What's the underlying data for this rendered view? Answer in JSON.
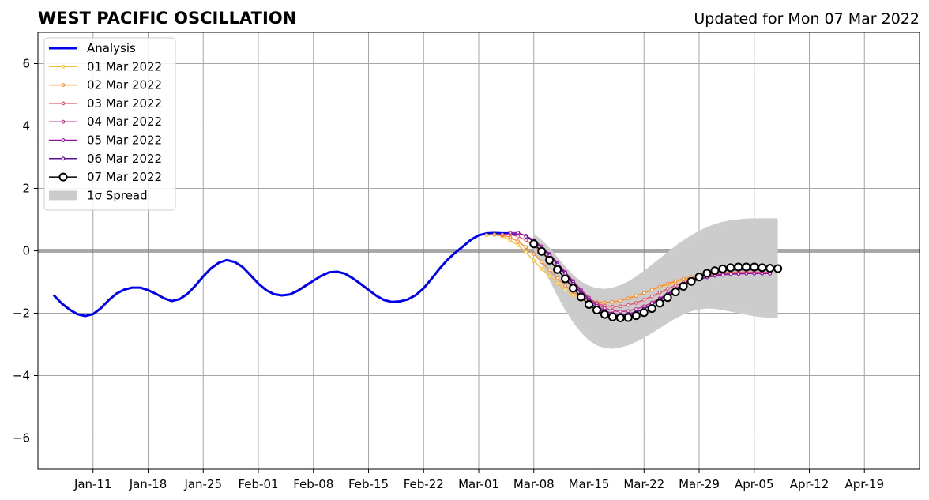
{
  "chart_data": {
    "type": "line",
    "title": "WEST PACIFIC OSCILLATION",
    "subtitle": "Updated for Mon 07 Mar 2022",
    "xlabel": "",
    "ylabel": "",
    "xlim": [
      "2022-01-04",
      "2022-04-26"
    ],
    "ylim": [
      -7,
      7
    ],
    "grid": true,
    "legend_position": "top-left",
    "x_ticks": [
      "2022-01-11",
      "2022-01-18",
      "2022-01-25",
      "2022-02-01",
      "2022-02-08",
      "2022-02-15",
      "2022-02-22",
      "2022-03-01",
      "2022-03-08",
      "2022-03-15",
      "2022-03-22",
      "2022-03-29",
      "2022-04-05",
      "2022-04-12",
      "2022-04-19"
    ],
    "x_tick_labels": [
      "Jan-11",
      "Jan-18",
      "Jan-25",
      "Feb-01",
      "Feb-08",
      "Feb-15",
      "Feb-22",
      "Mar-01",
      "Mar-08",
      "Mar-15",
      "Mar-22",
      "Mar-29",
      "Apr-05",
      "Apr-12",
      "Apr-19"
    ],
    "y_ticks": [
      -6,
      -4,
      -2,
      0,
      2,
      4,
      6
    ],
    "y_tick_labels": [
      "−6",
      "−4",
      "−2",
      "0",
      "2",
      "4",
      "6"
    ],
    "analysis": {
      "name": "Analysis",
      "color": "#0000ee",
      "start": "2022-01-06",
      "values": [
        -1.42,
        -1.68,
        -1.88,
        -2.03,
        -2.09,
        -2.03,
        -1.84,
        -1.58,
        -1.37,
        -1.24,
        -1.18,
        -1.18,
        -1.26,
        -1.38,
        -1.52,
        -1.61,
        -1.55,
        -1.38,
        -1.12,
        -0.82,
        -0.56,
        -0.38,
        -0.3,
        -0.36,
        -0.52,
        -0.78,
        -1.05,
        -1.26,
        -1.39,
        -1.43,
        -1.4,
        -1.28,
        -1.12,
        -0.96,
        -0.8,
        -0.69,
        -0.67,
        -0.73,
        -0.88,
        -1.06,
        -1.25,
        -1.44,
        -1.58,
        -1.64,
        -1.62,
        -1.56,
        -1.42,
        -1.2,
        -0.9,
        -0.58,
        -0.3,
        -0.06,
        0.14,
        0.35,
        0.5,
        0.56,
        0.57,
        0.56,
        0.56,
        0.56
      ]
    },
    "forecasts": [
      {
        "name": "01 Mar 2022",
        "color": "#fcbf3a",
        "start": "2022-03-02",
        "values": [
          0.5,
          0.52,
          0.46,
          0.34,
          0.18,
          -0.05,
          -0.32,
          -0.58,
          -0.82,
          -1.05,
          -1.25,
          -1.42,
          -1.54,
          -1.62,
          -1.66,
          -1.67,
          -1.64,
          -1.59,
          -1.52,
          -1.44,
          -1.35,
          -1.26,
          -1.16,
          -1.08,
          -1.0,
          -0.93,
          -0.86,
          -0.8,
          -0.76,
          -0.73,
          -0.71,
          -0.7,
          -0.7,
          -0.7,
          -0.7
        ]
      },
      {
        "name": "02 Mar 2022",
        "color": "#f48f3b",
        "start": "2022-03-03",
        "values": [
          0.51,
          0.5,
          0.43,
          0.3,
          0.12,
          -0.1,
          -0.36,
          -0.62,
          -0.88,
          -1.12,
          -1.32,
          -1.48,
          -1.58,
          -1.64,
          -1.66,
          -1.64,
          -1.6,
          -1.53,
          -1.45,
          -1.35,
          -1.25,
          -1.15,
          -1.05,
          -0.97,
          -0.9,
          -0.84,
          -0.79,
          -0.75,
          -0.72,
          -0.7,
          -0.69,
          -0.68,
          -0.68,
          -0.68,
          -0.68
        ]
      },
      {
        "name": "03 Mar 2022",
        "color": "#e05c72",
        "start": "2022-03-04",
        "values": [
          0.52,
          0.52,
          0.46,
          0.34,
          0.17,
          -0.06,
          -0.32,
          -0.6,
          -0.87,
          -1.13,
          -1.36,
          -1.55,
          -1.68,
          -1.76,
          -1.79,
          -1.78,
          -1.74,
          -1.67,
          -1.57,
          -1.46,
          -1.34,
          -1.22,
          -1.11,
          -1.01,
          -0.93,
          -0.86,
          -0.8,
          -0.76,
          -0.73,
          -0.71,
          -0.7,
          -0.69,
          -0.69,
          -0.69,
          -0.69
        ]
      },
      {
        "name": "04 Mar 2022",
        "color": "#c1378a",
        "start": "2022-03-05",
        "values": [
          0.58,
          0.56,
          0.48,
          0.34,
          0.14,
          -0.1,
          -0.38,
          -0.68,
          -0.97,
          -1.25,
          -1.5,
          -1.7,
          -1.84,
          -1.92,
          -1.95,
          -1.93,
          -1.87,
          -1.78,
          -1.66,
          -1.52,
          -1.38,
          -1.24,
          -1.11,
          -1.0,
          -0.91,
          -0.84,
          -0.79,
          -0.76,
          -0.74,
          -0.73,
          -0.73,
          -0.73,
          -0.73,
          -0.73
        ]
      },
      {
        "name": "05 Mar 2022",
        "color": "#8f15a0",
        "start": "2022-03-06",
        "values": [
          0.58,
          0.48,
          0.32,
          0.12,
          -0.12,
          -0.4,
          -0.7,
          -1.0,
          -1.29,
          -1.55,
          -1.76,
          -1.92,
          -2.01,
          -2.04,
          -2.02,
          -1.96,
          -1.86,
          -1.73,
          -1.58,
          -1.42,
          -1.27,
          -1.13,
          -1.01,
          -0.92,
          -0.85,
          -0.8,
          -0.77,
          -0.75,
          -0.74,
          -0.73,
          -0.73,
          -0.73,
          -0.73
        ]
      },
      {
        "name": "06 Mar 2022",
        "color": "#5a0f8f",
        "start": "2022-03-07",
        "values": [
          0.45,
          0.3,
          0.1,
          -0.15,
          -0.44,
          -0.75,
          -1.06,
          -1.36,
          -1.62,
          -1.83,
          -1.98,
          -2.06,
          -2.08,
          -2.05,
          -1.97,
          -1.86,
          -1.71,
          -1.55,
          -1.38,
          -1.22,
          -1.07,
          -0.94,
          -0.83,
          -0.74,
          -0.68,
          -0.64,
          -0.62,
          -0.61,
          -0.61,
          -0.61,
          -0.61,
          -0.61
        ]
      }
    ],
    "latest": {
      "name": "07 Mar 2022",
      "color": "#000000",
      "start": "2022-03-08",
      "values": [
        0.22,
        -0.02,
        -0.3,
        -0.6,
        -0.9,
        -1.2,
        -1.48,
        -1.72,
        -1.9,
        -2.04,
        -2.12,
        -2.15,
        -2.14,
        -2.08,
        -1.98,
        -1.85,
        -1.68,
        -1.5,
        -1.32,
        -1.14,
        -0.98,
        -0.84,
        -0.72,
        -0.64,
        -0.58,
        -0.54,
        -0.52,
        -0.52,
        -0.52,
        -0.54,
        -0.56,
        -0.57
      ]
    },
    "spread": {
      "name": "1σ Spread",
      "color": "#cccccc",
      "start": "2022-03-08",
      "upper": [
        0.55,
        0.35,
        0.1,
        -0.2,
        -0.5,
        -0.78,
        -0.98,
        -1.12,
        -1.2,
        -1.22,
        -1.18,
        -1.1,
        -0.98,
        -0.82,
        -0.64,
        -0.44,
        -0.24,
        -0.04,
        0.16,
        0.34,
        0.5,
        0.64,
        0.76,
        0.86,
        0.93,
        0.98,
        1.01,
        1.03,
        1.04,
        1.04,
        1.04,
        1.04
      ],
      "lower": [
        0.0,
        -0.45,
        -0.95,
        -1.45,
        -1.9,
        -2.3,
        -2.62,
        -2.87,
        -3.03,
        -3.12,
        -3.14,
        -3.1,
        -3.03,
        -2.92,
        -2.79,
        -2.64,
        -2.48,
        -2.32,
        -2.17,
        -2.04,
        -1.94,
        -1.88,
        -1.85,
        -1.86,
        -1.9,
        -1.95,
        -2.0,
        -2.05,
        -2.1,
        -2.13,
        -2.15,
        -2.16
      ]
    }
  }
}
